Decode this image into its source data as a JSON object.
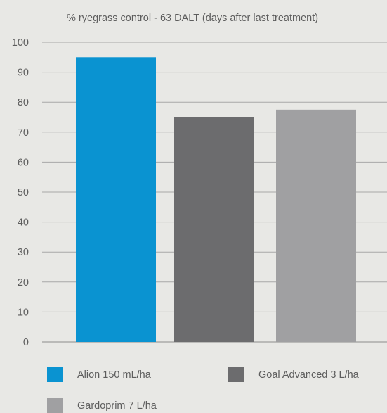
{
  "chart_data": {
    "type": "bar",
    "title": "% ryegrass control - 63 DALT (days after last treatment)",
    "xlabel": "",
    "ylabel": "",
    "ylim": [
      0,
      100
    ],
    "yticks": [
      0,
      10,
      20,
      30,
      40,
      50,
      60,
      70,
      80,
      90,
      100
    ],
    "grid": true,
    "legend_position": "bottom",
    "categories": [
      "Alion 150 mL/ha",
      "Goal Advanced 3 L/ha",
      "Gardoprim 7 L/ha"
    ],
    "values": [
      95,
      75,
      77.5
    ],
    "colors": [
      "#0a93d1",
      "#6c6c6e",
      "#a0a0a2"
    ]
  },
  "legend": [
    {
      "label": "Alion 150 mL/ha",
      "color": "#0a93d1"
    },
    {
      "label": "Goal Advanced 3 L/ha",
      "color": "#6c6c6e"
    },
    {
      "label": "Gardoprim 7 L/ha",
      "color": "#a0a0a2"
    }
  ]
}
